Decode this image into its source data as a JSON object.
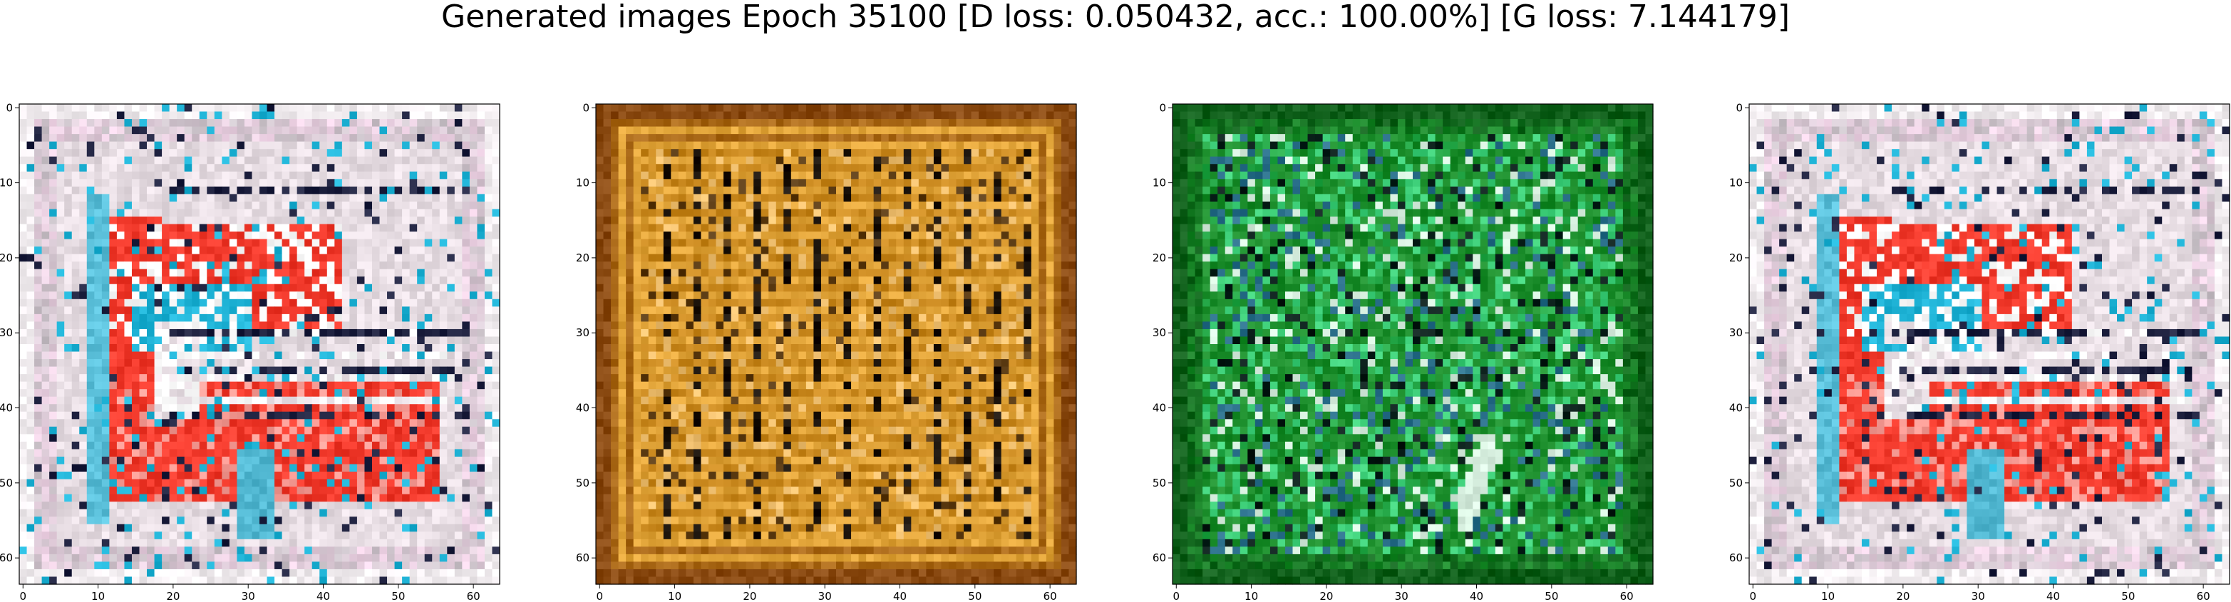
{
  "figure": {
    "title": "Generated images Epoch 35100 [D loss: 0.050432, acc.: 100.00%] [G loss: 7.144179]"
  },
  "panel_axes": {
    "x_ticks": [
      "0",
      "10",
      "20",
      "30",
      "40",
      "50",
      "60"
    ],
    "y_ticks": [
      "0",
      "10",
      "20",
      "30",
      "40",
      "50",
      "60"
    ],
    "image_size": 64
  },
  "panels": [
    {
      "id": "sample-1",
      "palette": {
        "base": "#e7dde3",
        "frame": "#c9c2c8",
        "accent1": "#f23a2c",
        "accent2": "#1fb3d6",
        "accent3": "#ffffff",
        "dark": "#1f2240",
        "extra": "#f1d4e7"
      },
      "style": "house"
    },
    {
      "id": "sample-2",
      "palette": {
        "base": "#c9881e",
        "frame": "#8a4a12",
        "accent1": "#e2a53a",
        "accent2": "#5a3a12",
        "accent3": "#f0c070",
        "dark": "#1a120a",
        "extra": "#b06a20"
      },
      "style": "stripes"
    },
    {
      "id": "sample-3",
      "palette": {
        "base": "#1c8e2c",
        "frame": "#0f5f1a",
        "accent1": "#3fd07a",
        "accent2": "#2a6f8a",
        "accent3": "#d8f0e0",
        "dark": "#0a1f1a",
        "extra": "#25a848"
      },
      "style": "noise"
    },
    {
      "id": "sample-4",
      "palette": {
        "base": "#e7dde3",
        "frame": "#c9c2c8",
        "accent1": "#f23a2c",
        "accent2": "#1fb3d6",
        "accent3": "#ffffff",
        "dark": "#1f2240",
        "extra": "#f1d4e7"
      },
      "style": "house"
    }
  ]
}
